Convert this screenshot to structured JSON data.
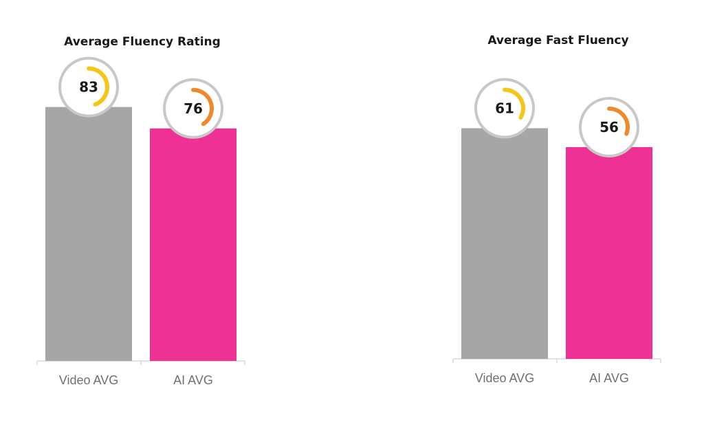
{
  "chart_data": [
    {
      "type": "bar",
      "title": "Average Fluency Rating",
      "categories": [
        "Video AVG",
        "AI AVG"
      ],
      "values": [
        83,
        76
      ],
      "value_labels": [
        "83",
        "76"
      ],
      "ylim": [
        0,
        100
      ],
      "xlabel": "",
      "ylabel": "",
      "grid": false,
      "legend": "none"
    },
    {
      "type": "bar",
      "title": "Average Fast Fluency",
      "categories": [
        "Video AVG",
        "AI AVG"
      ],
      "values": [
        61,
        56
      ],
      "value_labels": [
        "61",
        "56"
      ],
      "ylim": [
        0,
        80
      ],
      "xlabel": "",
      "ylabel": "",
      "grid": false,
      "legend": "none"
    }
  ],
  "colors": {
    "video_bar": "#a6a6a6",
    "ai_bar": "#ee3194",
    "video_ring": "#f5c518",
    "ai_ring": "#ef8a2c",
    "badge_outline": "#c8c8c8",
    "axis_line": "#d9d9d9"
  }
}
